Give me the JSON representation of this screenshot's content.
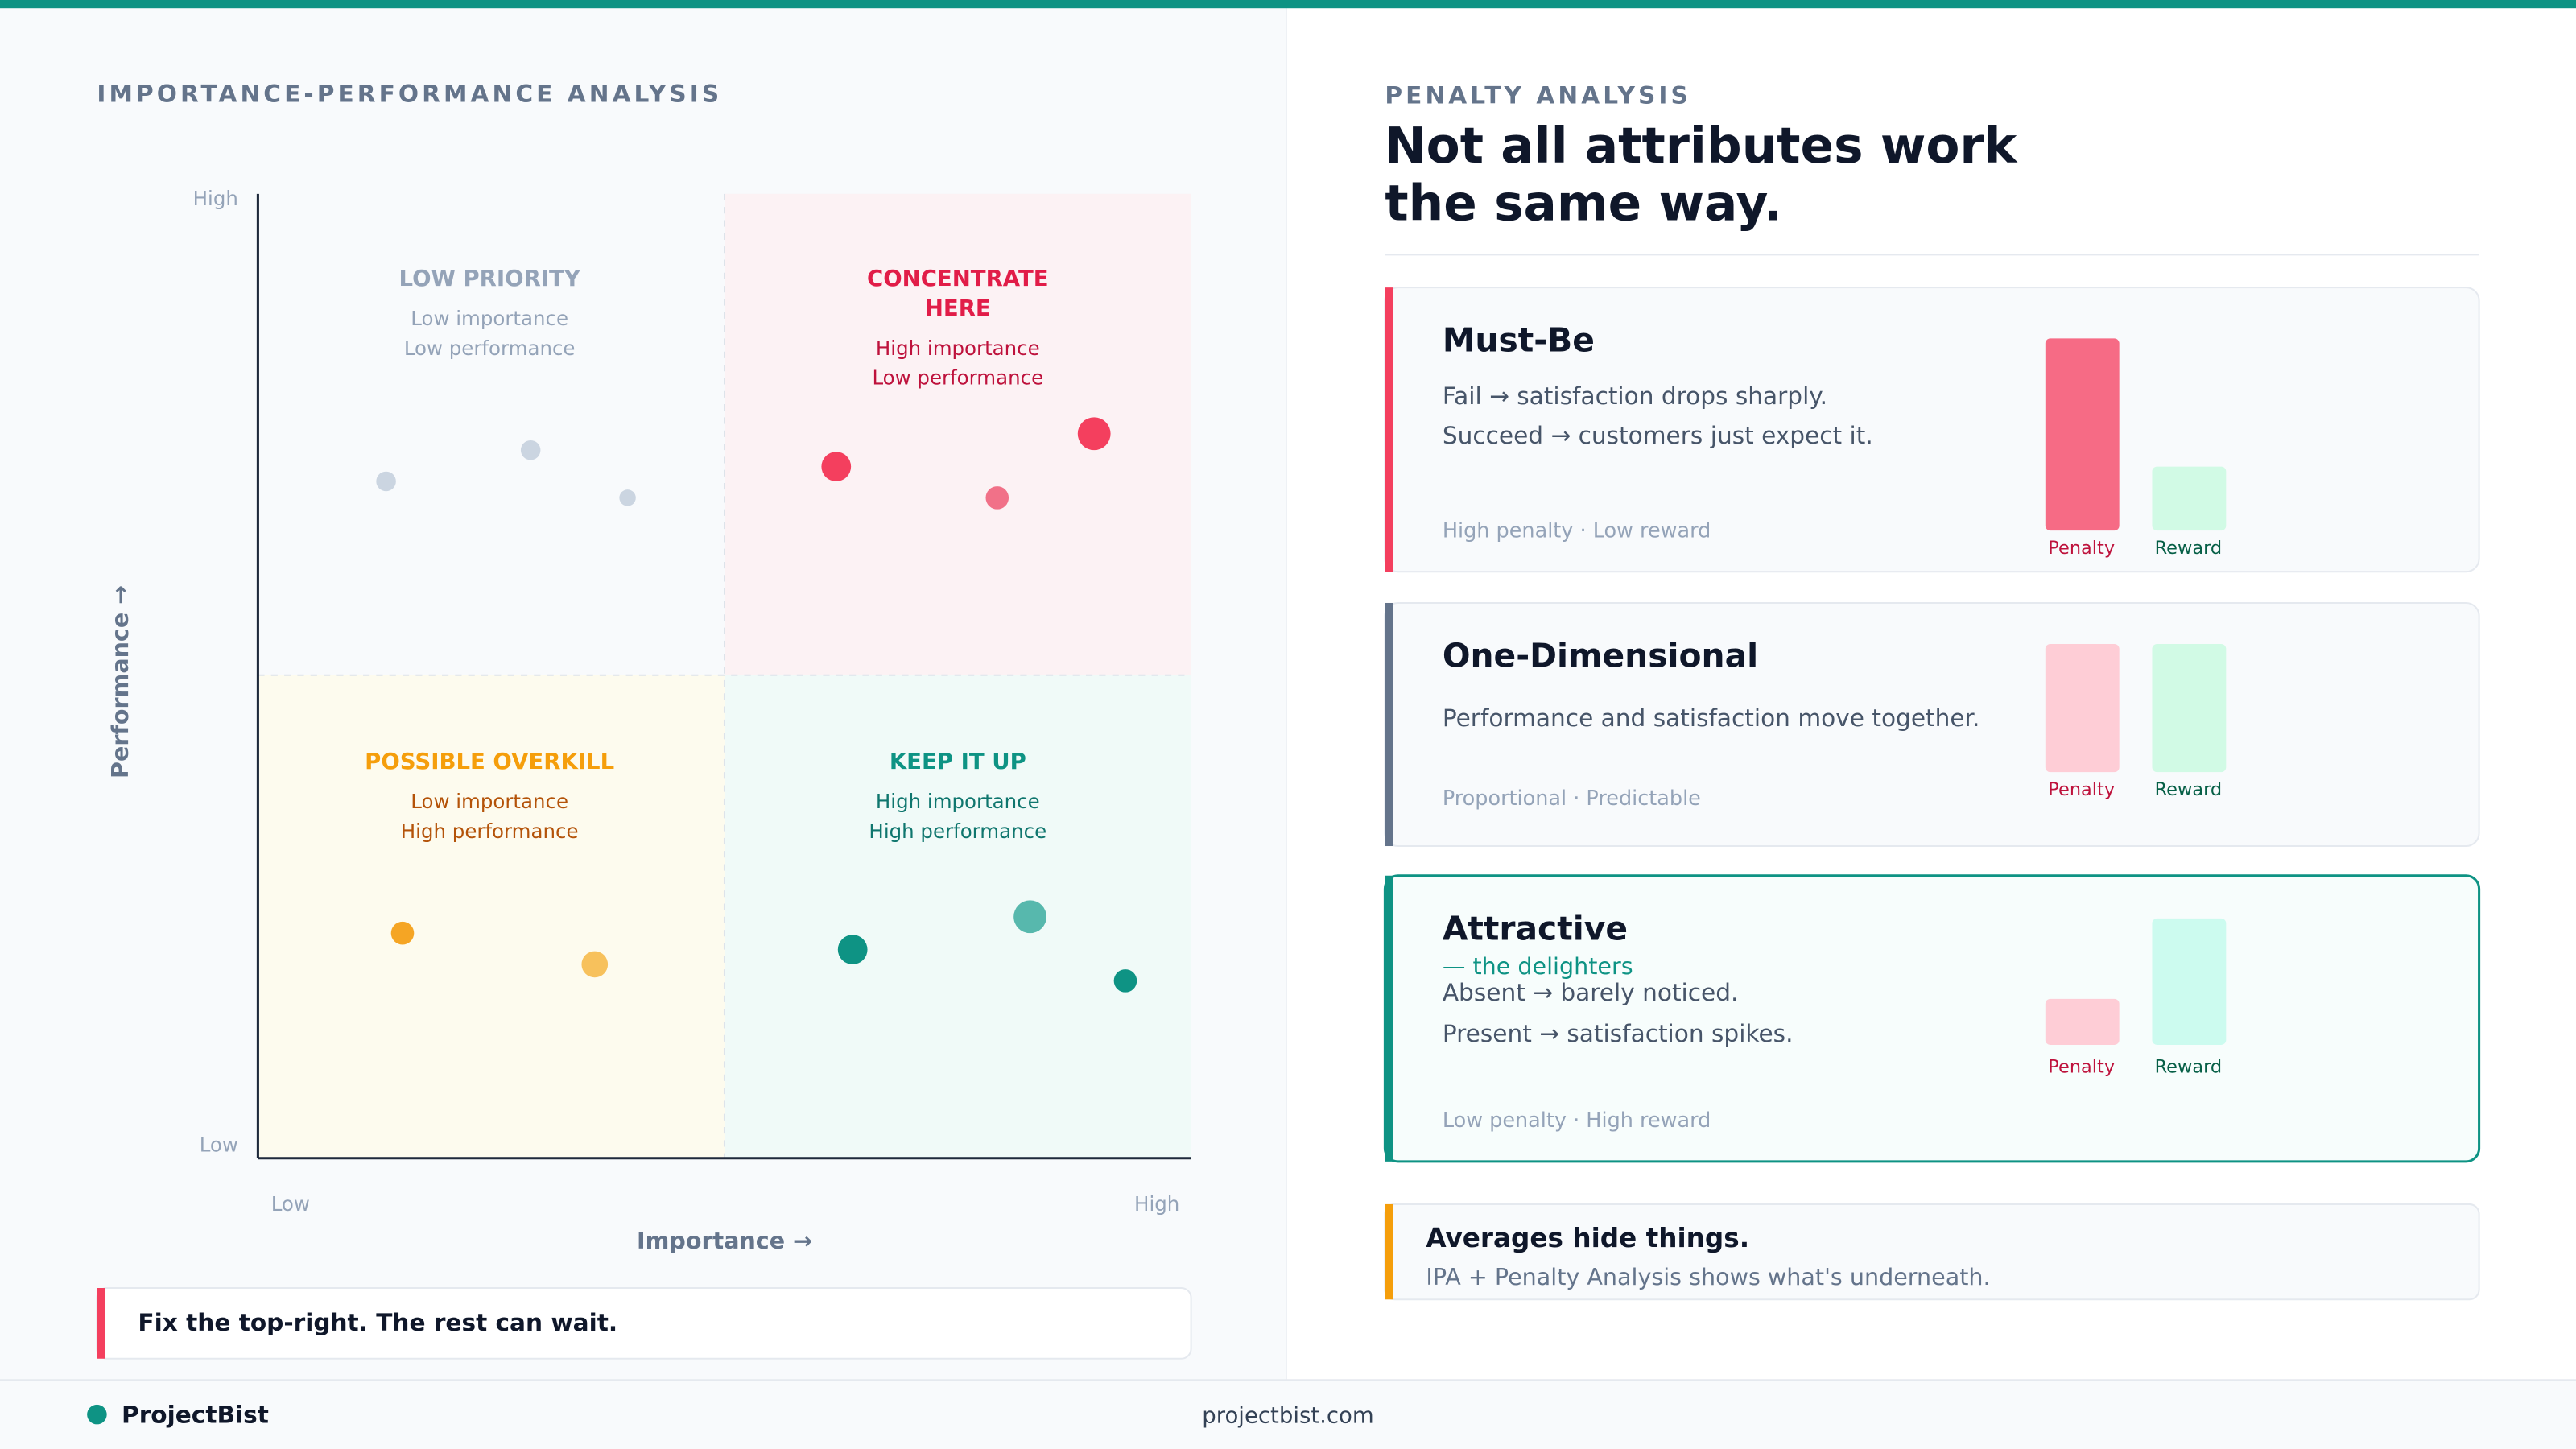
{
  "left": {
    "eyebrow": "IMPORTANCE-PERFORMANCE ANALYSIS",
    "y_high": "High",
    "y_low": "Low",
    "x_low": "Low",
    "x_high": "High",
    "y_label": "Performance →",
    "x_label": "Importance →",
    "quadrants": [
      {
        "title": [
          "LOW PRIORITY"
        ],
        "lines": [
          "Low importance",
          "Low performance"
        ]
      },
      {
        "title": [
          "CONCENTRATE",
          "HERE"
        ],
        "lines": [
          "High importance",
          "Low performance"
        ]
      },
      {
        "title": [
          "POSSIBLE OVERKILL"
        ],
        "lines": [
          "Low importance",
          "High performance"
        ]
      },
      {
        "title": [
          "KEEP IT UP"
        ],
        "lines": [
          "High importance",
          "High performance"
        ]
      }
    ],
    "callout": "Fix the top-right. The rest can wait."
  },
  "right": {
    "eyebrow": "PENALTY ANALYSIS",
    "heading": [
      "Not all attributes work",
      "the same way."
    ],
    "cards": [
      {
        "title": "Must-Be",
        "lines": [
          "Fail → satisfaction drops sharply.",
          "Succeed → customers just expect it."
        ],
        "meta": "High penalty · Low reward",
        "penalty": "Penalty",
        "reward": "Reward"
      },
      {
        "title": "One-Dimensional",
        "lines": [
          "Performance and satisfaction move together."
        ],
        "meta": "Proportional · Predictable",
        "penalty": "Penalty",
        "reward": "Reward"
      },
      {
        "title": "Attractive",
        "subtitle": "— the delighters",
        "lines": [
          "Absent → barely noticed.",
          "Present → satisfaction spikes."
        ],
        "meta": "Low penalty · High reward",
        "penalty": "Penalty",
        "reward": "Reward"
      }
    ],
    "note": {
      "title": "Averages hide things.",
      "text": "IPA + Penalty Analysis shows what's underneath."
    }
  },
  "footer": {
    "brand": "ProjectBist",
    "url": "projectbist.com"
  }
}
